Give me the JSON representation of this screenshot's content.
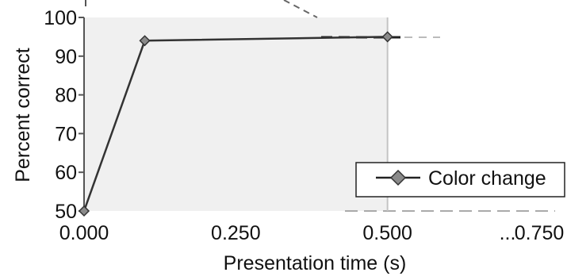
{
  "chart_data": {
    "type": "line",
    "xlabel": "Presentation time (s)",
    "ylabel": "Percent correct",
    "x_ticks": [
      "0.000",
      "0.250",
      "0.500",
      "0.750",
      "..."
    ],
    "y_ticks": [
      "50",
      "60",
      "70",
      "80",
      "90",
      "100"
    ],
    "xlim": [
      0,
      0.75
    ],
    "ylim": [
      50,
      100
    ],
    "grid": false,
    "legend_position": "bottom-right",
    "series": [
      {
        "name": "Color change",
        "x": [
          0,
          0.1,
          0.5
        ],
        "y": [
          50,
          94,
          95
        ],
        "color": "#333333",
        "marker": "diamond",
        "marker_color": "#8a8a8a"
      }
    ],
    "shaded_region": {
      "x": [
        0,
        0.5
      ],
      "color": "#f0f0f0"
    }
  }
}
